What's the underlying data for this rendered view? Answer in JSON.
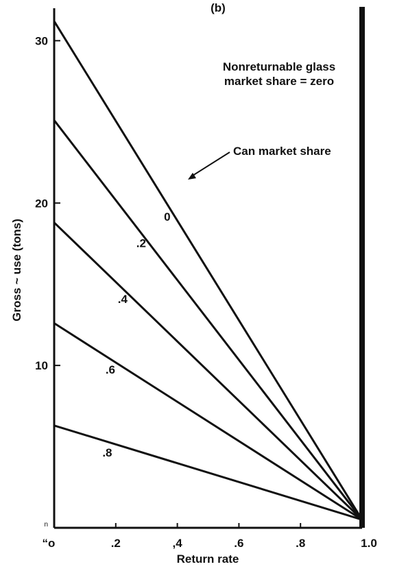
{
  "chart_data": {
    "type": "line",
    "panel_label": "(b)",
    "xlabel": "Return rate",
    "ylabel": "Gross ~ use (tons)",
    "xlim": [
      0,
      1.0
    ],
    "ylim": [
      0,
      32
    ],
    "x_ticks": [
      {
        "value": 0,
        "label": "“o"
      },
      {
        "value": 0.2,
        "label": ".2"
      },
      {
        "value": 0.4,
        "label": ",4"
      },
      {
        "value": 0.6,
        "label": ".6"
      },
      {
        "value": 0.8,
        "label": ".8"
      },
      {
        "value": 1.0,
        "label": "1.0"
      }
    ],
    "y_ticks": [
      {
        "value": 0,
        "label": "n"
      },
      {
        "value": 10,
        "label": "10"
      },
      {
        "value": 20,
        "label": "20"
      },
      {
        "value": 30,
        "label": "30"
      }
    ],
    "annotation_title": [
      "Nonreturnable glass",
      "market share = zero"
    ],
    "legend_annotation": "Can market share",
    "series": [
      {
        "name": "0",
        "label_at_x": 0.37,
        "x": [
          0,
          1.0
        ],
        "y": [
          31.2,
          0.5
        ]
      },
      {
        "name": ".2",
        "label_at_x": 0.28,
        "x": [
          0,
          1.0
        ],
        "y": [
          25.1,
          0.5
        ]
      },
      {
        "name": ".4",
        "label_at_x": 0.22,
        "x": [
          0,
          1.0
        ],
        "y": [
          18.8,
          0.5
        ]
      },
      {
        "name": ".6",
        "label_at_x": 0.18,
        "x": [
          0,
          1.0
        ],
        "y": [
          12.6,
          0.5
        ]
      },
      {
        "name": ".8",
        "label_at_x": 0.17,
        "x": [
          0,
          1.0
        ],
        "y": [
          6.3,
          0.5
        ]
      }
    ],
    "grid": false,
    "colors": {
      "line": "#111111",
      "background": "#ffffff"
    }
  }
}
